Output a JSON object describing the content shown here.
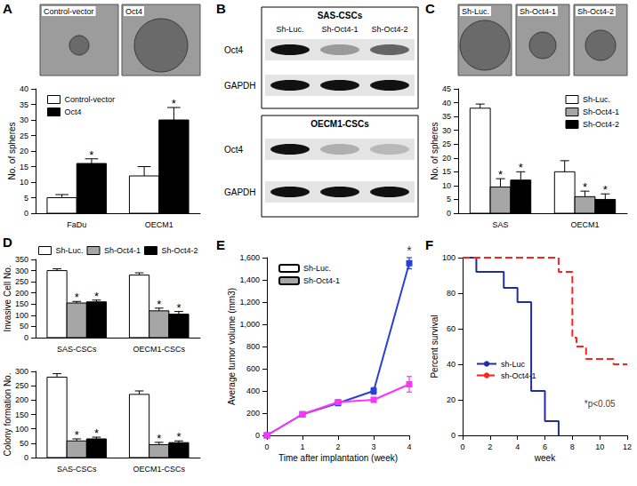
{
  "chart_data": [
    {
      "type": "bar",
      "categories": [
        "FaDu",
        "OECM1"
      ],
      "y_label": "No. of spheres",
      "ylim": [
        0,
        40
      ],
      "yticks": [
        0,
        5,
        10,
        15,
        20,
        25,
        30,
        35,
        40
      ],
      "grid": false,
      "legend": "top-left",
      "series": [
        {
          "name": "Control-vector",
          "color": "#ffffff",
          "values": [
            5,
            12
          ],
          "errors": [
            1,
            3
          ]
        },
        {
          "name": "Oct4",
          "color": "#000000",
          "values": [
            16,
            30
          ],
          "errors": [
            1.5,
            4
          ],
          "annotations": [
            "*",
            "*"
          ]
        }
      ]
    },
    {
      "type": "bar",
      "categories": [
        "SAS",
        "OECM1"
      ],
      "y_label": "No. of spheres",
      "ylim": [
        0,
        45
      ],
      "yticks": [
        0,
        5,
        10,
        15,
        20,
        25,
        30,
        35,
        40,
        45
      ],
      "grid": false,
      "legend": "top-right",
      "series": [
        {
          "name": "Sh-Luc.",
          "color": "#ffffff",
          "values": [
            38,
            15
          ],
          "errors": [
            1.5,
            4
          ]
        },
        {
          "name": "Sh-Oct4-1",
          "color": "#a6a6a6",
          "values": [
            9.5,
            6
          ],
          "errors": [
            3,
            2
          ],
          "annotations": [
            "*",
            "*"
          ]
        },
        {
          "name": "Sh-Oct4-2",
          "color": "#000000",
          "values": [
            12,
            5
          ],
          "errors": [
            3,
            2
          ],
          "annotations": [
            "*",
            "*"
          ]
        }
      ]
    },
    {
      "type": "bar",
      "panel": "D",
      "categories": [
        "SAS-CSCs",
        "OECM1-CSCs"
      ],
      "y_label": "Invasive Cell No.",
      "ylim": [
        0,
        350
      ],
      "yticks": [
        0,
        50,
        100,
        150,
        200,
        250,
        300,
        350
      ],
      "grid": false,
      "legend": "top",
      "series": [
        {
          "name": "Sh-Luc.",
          "color": "#ffffff",
          "values": [
            300,
            280
          ],
          "errors": [
            8,
            10
          ]
        },
        {
          "name": "Sh-Oct4-1",
          "color": "#a6a6a6",
          "values": [
            155,
            120
          ],
          "errors": [
            7,
            12
          ],
          "annotations": [
            "*",
            "*"
          ]
        },
        {
          "name": "Sh-Oct4-2",
          "color": "#000000",
          "values": [
            160,
            105
          ],
          "errors": [
            8,
            12
          ],
          "annotations": [
            "*",
            "*"
          ]
        }
      ]
    },
    {
      "type": "bar",
      "categories": [
        "SAS-CSCs",
        "OECM1-CSCs"
      ],
      "y_label": "Colony formation No.",
      "ylim": [
        0,
        300
      ],
      "yticks": [
        0,
        50,
        100,
        150,
        200,
        250,
        300
      ],
      "grid": false,
      "series": [
        {
          "name": "Sh-Luc.",
          "color": "#ffffff",
          "values": [
            280,
            220
          ],
          "errors": [
            12,
            12
          ]
        },
        {
          "name": "Sh-Oct4-1",
          "color": "#a6a6a6",
          "values": [
            58,
            45
          ],
          "errors": [
            7,
            8
          ],
          "annotations": [
            "*",
            "*"
          ]
        },
        {
          "name": "Sh-Oct4-2",
          "color": "#000000",
          "values": [
            65,
            52
          ],
          "errors": [
            6,
            6
          ],
          "annotations": [
            "*",
            "*"
          ]
        }
      ]
    },
    {
      "type": "line",
      "panel": "E",
      "x_label": "Time after implantation (week)",
      "y_label": "Average tumor volume (mm3)",
      "xlim": [
        0,
        4
      ],
      "xticks": [
        0,
        1,
        2,
        3,
        4
      ],
      "ylim": [
        0,
        1600
      ],
      "yticks": [
        0,
        200,
        400,
        600,
        800,
        1000,
        1200,
        1400,
        1600
      ],
      "grid": false,
      "legend": "top-left",
      "series": [
        {
          "name": "Sh-Luc.",
          "color": "#2a3fd6",
          "marker": "square",
          "x": [
            0,
            1,
            2,
            3,
            4
          ],
          "values": [
            0,
            190,
            290,
            400,
            1550
          ],
          "errors": [
            0,
            10,
            20,
            30,
            50
          ]
        },
        {
          "name": "Sh-Oct4-1",
          "color": "#ff33ff",
          "marker": "square",
          "x": [
            0,
            1,
            2,
            3,
            4
          ],
          "values": [
            0,
            190,
            300,
            320,
            460
          ],
          "errors": [
            0,
            10,
            20,
            20,
            70
          ]
        }
      ],
      "annotations": [
        {
          "text": "*",
          "x": 4,
          "y": 1600
        }
      ]
    },
    {
      "type": "step",
      "panel": "F",
      "x_label": "week",
      "y_label": "Percent survival",
      "xlim": [
        0,
        12
      ],
      "xticks": [
        0,
        2,
        4,
        6,
        8,
        10,
        12
      ],
      "ylim": [
        0,
        100
      ],
      "yticks": [
        0,
        20,
        40,
        60,
        80,
        100
      ],
      "grid": false,
      "legend": "bottom-left",
      "series": [
        {
          "name": "sh-Luc",
          "color": "#1f2fa0",
          "line_style": "solid",
          "x": [
            0,
            1,
            3,
            4,
            5,
            6,
            7
          ],
          "values": [
            100,
            92,
            83,
            75,
            25,
            8,
            0
          ]
        },
        {
          "name": "sh-Oct4-1",
          "color": "#ff2020",
          "line_style": "dashed",
          "x": [
            0,
            7,
            8,
            8.3,
            9,
            11,
            12
          ],
          "values": [
            100,
            92,
            55,
            50,
            43,
            40,
            40
          ]
        }
      ],
      "annotations": [
        {
          "text": "*p<0.05",
          "x": 10,
          "y": 15
        }
      ]
    }
  ],
  "photos": [
    {
      "panel": "A",
      "labels": [
        "Control-vector",
        "Oct4"
      ]
    },
    {
      "panel": "C",
      "labels": [
        "Sh-Luc.",
        "Sh-Oct4-1",
        "Sh-Oct4-2"
      ]
    }
  ],
  "blots": {
    "panel": "B",
    "lanes": [
      "Sh-Luc.",
      "Sh-Oct4-1",
      "Sh-Oct4-2"
    ],
    "blocks": [
      {
        "title": "SAS-CSCs",
        "rows": [
          {
            "label": "Oct4",
            "bands": [
              1,
              0.35,
              0.6
            ]
          },
          {
            "label": "GAPDH",
            "bands": [
              1,
              1,
              1
            ]
          }
        ]
      },
      {
        "title": "OECM1-CSCs",
        "rows": [
          {
            "label": "Oct4",
            "bands": [
              1,
              0.25,
              0.2
            ]
          },
          {
            "label": "GAPDH",
            "bands": [
              1,
              1,
              1
            ]
          }
        ]
      }
    ]
  }
}
